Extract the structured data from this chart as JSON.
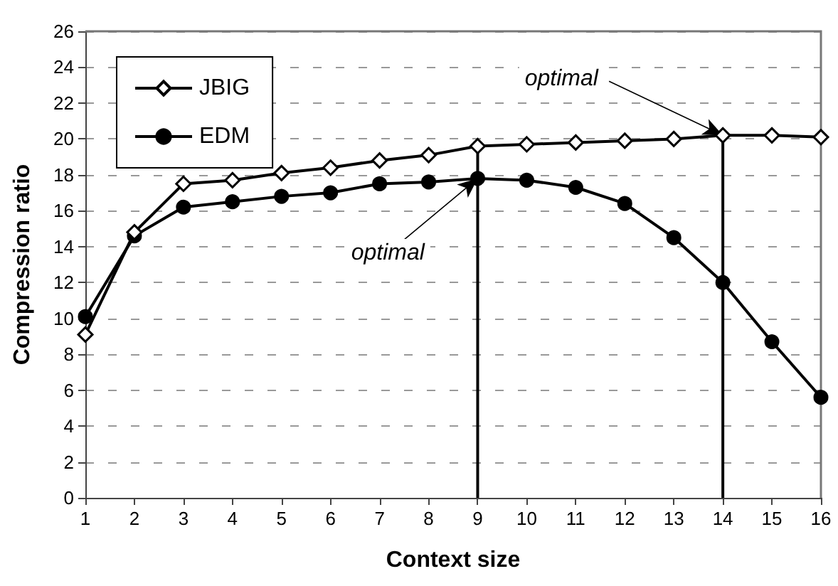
{
  "chart_data": {
    "type": "line",
    "xlabel": "Context size",
    "ylabel": "Compression ratio",
    "x": [
      1,
      2,
      3,
      4,
      5,
      6,
      7,
      8,
      9,
      10,
      11,
      12,
      13,
      14,
      15,
      16
    ],
    "series": [
      {
        "name": "JBIG",
        "color": "#000000",
        "marker": "diamond",
        "values": [
          9.1,
          14.8,
          17.5,
          17.7,
          18.1,
          18.4,
          18.8,
          19.1,
          19.6,
          19.7,
          19.8,
          19.9,
          20.0,
          20.2,
          20.2,
          20.1
        ]
      },
      {
        "name": "EDM",
        "color": "#000000",
        "marker": "circle",
        "values": [
          10.1,
          14.6,
          16.2,
          16.5,
          16.8,
          17.0,
          17.5,
          17.6,
          17.8,
          17.7,
          17.3,
          16.4,
          14.5,
          12.0,
          8.7,
          5.6
        ]
      }
    ],
    "xlim": [
      1,
      16
    ],
    "xticks": [
      1,
      2,
      3,
      4,
      5,
      6,
      7,
      8,
      9,
      10,
      11,
      12,
      13,
      14,
      15,
      16
    ],
    "ylim": [
      0,
      26
    ],
    "yticks": [
      0,
      2,
      4,
      6,
      8,
      10,
      12,
      14,
      16,
      18,
      20,
      22,
      24,
      26
    ],
    "grid": "y",
    "legend": "top left",
    "line_style": "solid",
    "ref_lines": [
      {
        "axis": "x",
        "value": 9
      },
      {
        "axis": "x",
        "value": 14
      }
    ],
    "annotations": [
      {
        "text": "optimal",
        "x": 9,
        "y": 17.8
      },
      {
        "text": "optimal",
        "x": 14,
        "y": 20.2
      }
    ]
  }
}
